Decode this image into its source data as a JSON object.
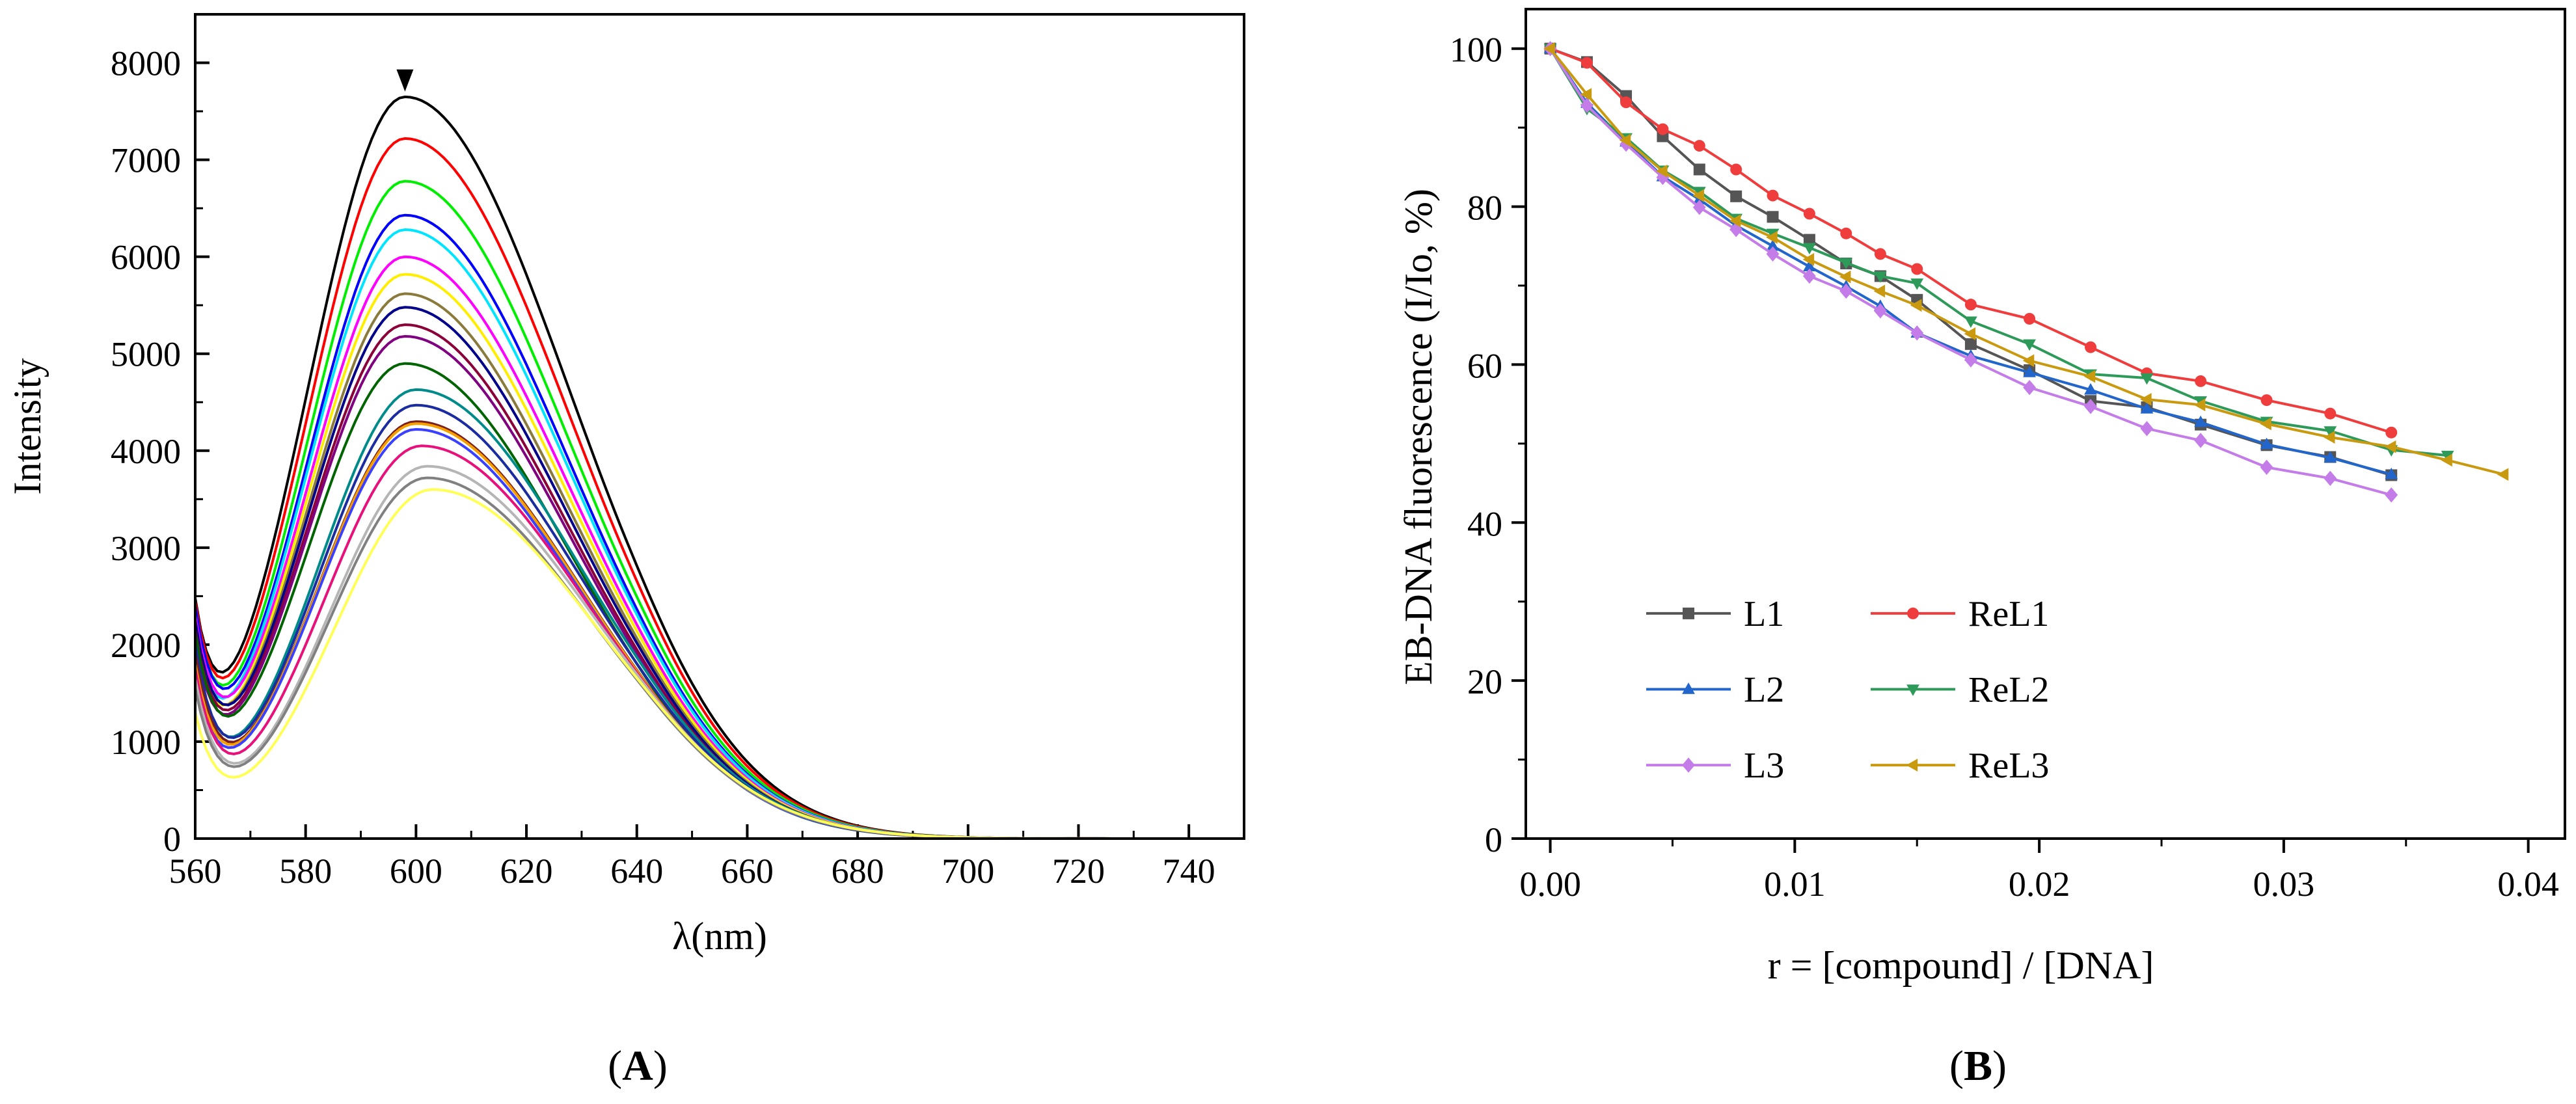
{
  "chart_data": [
    {
      "panel": "A",
      "panel_label": "(A)",
      "type": "line",
      "xlabel": "λ(nm)",
      "ylabel": "Intensity",
      "xlim": [
        560,
        750
      ],
      "ylim": [
        0,
        8500
      ],
      "xticks": [
        560,
        580,
        600,
        620,
        640,
        660,
        680,
        700,
        720,
        740
      ],
      "yticks": [
        0,
        1000,
        2000,
        3000,
        4000,
        5000,
        6000,
        7000,
        8000
      ],
      "annotation": "downward arrow at the maximum of the top curve (~598 nm) indicating intensity decrease",
      "arrow_at": [
        598,
        7650
      ],
      "series": [
        {
          "color": "#000000",
          "peak_x": 598,
          "peak_y": 7650,
          "start_y": 2480
        },
        {
          "color": "#ff0000",
          "peak_x": 598,
          "peak_y": 7220,
          "start_y": 2450
        },
        {
          "color": "#00ee00",
          "peak_x": 598,
          "peak_y": 6780,
          "start_y": 2380
        },
        {
          "color": "#0000ff",
          "peak_x": 598,
          "peak_y": 6430,
          "start_y": 2400
        },
        {
          "color": "#00e5ff",
          "peak_x": 598,
          "peak_y": 6280,
          "start_y": 2150
        },
        {
          "color": "#ff00ff",
          "peak_x": 598,
          "peak_y": 6000,
          "start_y": 2300
        },
        {
          "color": "#ffee00",
          "peak_x": 598,
          "peak_y": 5820,
          "start_y": 2100
        },
        {
          "color": "#8a7a3c",
          "peak_x": 598,
          "peak_y": 5620,
          "start_y": 2200
        },
        {
          "color": "#00008b",
          "peak_x": 598,
          "peak_y": 5480,
          "start_y": 2250
        },
        {
          "color": "#8b0038",
          "peak_x": 598,
          "peak_y": 5300,
          "start_y": 2150
        },
        {
          "color": "#800080",
          "peak_x": 598,
          "peak_y": 5180,
          "start_y": 2050
        },
        {
          "color": "#006400",
          "peak_x": 598,
          "peak_y": 4900,
          "start_y": 2120
        },
        {
          "color": "#008b8b",
          "peak_x": 600,
          "peak_y": 4630,
          "start_y": 1950
        },
        {
          "color": "#1a2ca0",
          "peak_x": 600,
          "peak_y": 4470,
          "start_y": 2000
        },
        {
          "color": "#7a1e1e",
          "peak_x": 600,
          "peak_y": 4300,
          "start_y": 1900
        },
        {
          "color": "#f5a000",
          "peak_x": 600,
          "peak_y": 4280,
          "start_y": 1800
        },
        {
          "color": "#3a40ff",
          "peak_x": 600,
          "peak_y": 4220,
          "start_y": 1700
        },
        {
          "color": "#e8107a",
          "peak_x": 601,
          "peak_y": 4050,
          "start_y": 1750
        },
        {
          "color": "#b5b5b5",
          "peak_x": 602,
          "peak_y": 3840,
          "start_y": 1650
        },
        {
          "color": "#808080",
          "peak_x": 602,
          "peak_y": 3720,
          "start_y": 1550
        },
        {
          "color": "#ffff55",
          "peak_x": 603,
          "peak_y": 3600,
          "start_y": 1300
        }
      ]
    },
    {
      "panel": "B",
      "panel_label": "(B)",
      "type": "line",
      "xlabel": "r = [compound] / [DNA]",
      "ylabel": "EB-DNA fluorescence (I/Io, %)",
      "xlim": [
        -0.001,
        0.0415
      ],
      "ylim": [
        0,
        105
      ],
      "xticks": [
        0.0,
        0.01,
        0.02,
        0.03,
        0.04
      ],
      "xtick_labels": [
        "0.00",
        "0.01",
        "0.02",
        "0.03",
        "0.04"
      ],
      "yticks": [
        0,
        20,
        40,
        60,
        80,
        100
      ],
      "legend_position": "lower-left",
      "series": [
        {
          "name": "L1",
          "color": "#555555",
          "marker": "square",
          "x": [
            0.0,
            0.0015,
            0.0031,
            0.0046,
            0.0061,
            0.0076,
            0.0091,
            0.0106,
            0.0121,
            0.0135,
            0.015,
            0.0172,
            0.0196,
            0.0221,
            0.0244,
            0.0266,
            0.0293,
            0.0319,
            0.0344
          ],
          "y": [
            100,
            98.3,
            94.0,
            88.9,
            84.7,
            81.3,
            78.7,
            75.8,
            72.8,
            71.2,
            68.2,
            62.6,
            59.3,
            55.4,
            54.6,
            52.4,
            49.8,
            48.3,
            46.0
          ]
        },
        {
          "name": "ReL1",
          "color": "#ef3d3d",
          "marker": "circle",
          "x": [
            0.0,
            0.0015,
            0.0031,
            0.0046,
            0.0061,
            0.0076,
            0.0091,
            0.0106,
            0.0121,
            0.0135,
            0.015,
            0.0172,
            0.0196,
            0.0221,
            0.0244,
            0.0266,
            0.0293,
            0.0319,
            0.0344
          ],
          "y": [
            100,
            98.2,
            93.2,
            89.8,
            87.7,
            84.7,
            81.4,
            79.1,
            76.6,
            74.0,
            72.1,
            67.6,
            65.8,
            62.2,
            58.9,
            57.9,
            55.5,
            53.8,
            51.4
          ]
        },
        {
          "name": "L2",
          "color": "#2266cc",
          "marker": "triangle-up",
          "x": [
            0.0,
            0.0015,
            0.0031,
            0.0046,
            0.0061,
            0.0076,
            0.0091,
            0.0106,
            0.0121,
            0.0135,
            0.015,
            0.0172,
            0.0196,
            0.0221,
            0.0244,
            0.0266,
            0.0293,
            0.0319,
            0.0344
          ],
          "y": [
            100,
            93.1,
            88.2,
            83.8,
            80.9,
            77.6,
            75.0,
            72.4,
            69.9,
            67.4,
            64.0,
            61.1,
            59.0,
            56.8,
            54.4,
            52.7,
            49.9,
            48.2,
            46.1
          ]
        },
        {
          "name": "ReL2",
          "color": "#2e9a5a",
          "marker": "triangle-down",
          "x": [
            0.0,
            0.0015,
            0.0031,
            0.0046,
            0.0061,
            0.0076,
            0.0091,
            0.0106,
            0.0121,
            0.0135,
            0.015,
            0.0172,
            0.0196,
            0.0221,
            0.0244,
            0.0266,
            0.0293,
            0.0319,
            0.0344,
            0.0367
          ],
          "y": [
            100,
            92.4,
            88.7,
            84.6,
            81.9,
            78.5,
            76.6,
            74.8,
            72.9,
            71.2,
            70.3,
            65.5,
            62.6,
            58.8,
            58.3,
            55.4,
            52.8,
            51.6,
            49.2,
            48.5
          ]
        },
        {
          "name": "L3",
          "color": "#c37ce8",
          "marker": "diamond",
          "x": [
            0.0,
            0.0015,
            0.0031,
            0.0046,
            0.0061,
            0.0076,
            0.0091,
            0.0106,
            0.0121,
            0.0135,
            0.015,
            0.0172,
            0.0196,
            0.0221,
            0.0244,
            0.0266,
            0.0293,
            0.0319,
            0.0344
          ],
          "y": [
            100,
            92.8,
            87.9,
            83.7,
            79.9,
            77.1,
            74.0,
            71.2,
            69.3,
            66.8,
            64.0,
            60.6,
            57.1,
            54.7,
            51.9,
            50.4,
            47.0,
            45.6,
            43.5
          ]
        },
        {
          "name": "ReL3",
          "color": "#c99a10",
          "marker": "triangle-left",
          "x": [
            0.0,
            0.0015,
            0.0031,
            0.0046,
            0.0061,
            0.0076,
            0.0091,
            0.0106,
            0.0121,
            0.0135,
            0.015,
            0.0172,
            0.0196,
            0.0221,
            0.0244,
            0.0266,
            0.0293,
            0.0319,
            0.0344,
            0.0367,
            0.039
          ],
          "y": [
            100,
            94.2,
            88.4,
            84.5,
            81.4,
            78.2,
            76.1,
            73.3,
            71.1,
            69.3,
            67.5,
            63.9,
            60.5,
            58.5,
            55.6,
            54.9,
            52.5,
            50.8,
            49.6,
            47.9,
            46.1
          ]
        }
      ]
    }
  ]
}
